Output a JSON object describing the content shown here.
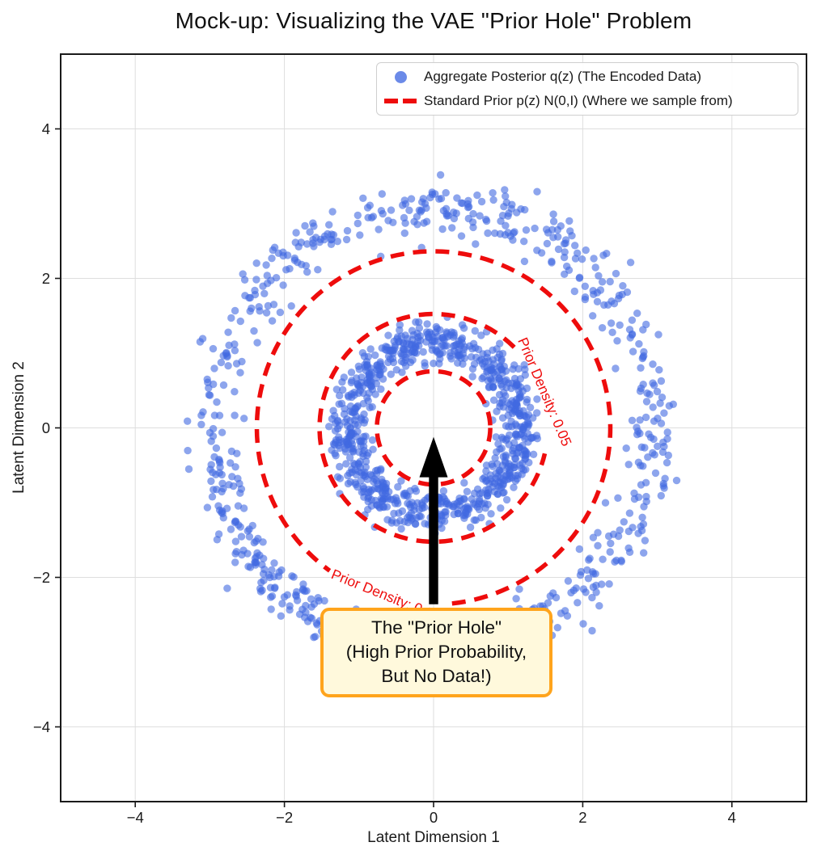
{
  "chart_data": {
    "type": "scatter",
    "title": "Mock-up: Visualizing the VAE \"Prior Hole\" Problem",
    "xlabel": "Latent Dimension 1",
    "ylabel": "Latent Dimension 2",
    "xlim": [
      -5,
      5
    ],
    "ylim": [
      -5,
      5
    ],
    "xticks": [
      -4,
      -2,
      0,
      2,
      4
    ],
    "yticks": [
      -4,
      -2,
      0,
      2,
      4
    ],
    "grid": true,
    "legend_position": "upper right",
    "series": [
      {
        "name": "Aggregate Posterior q(z) (The Encoded Data)",
        "type": "scatter",
        "marker": "circle",
        "color": "#4169E1",
        "alpha": 0.6,
        "seed": 20,
        "rings": [
          {
            "center": [
              0,
              0
            ],
            "mean_radius": 1.15,
            "radius_std": 0.13,
            "count": 850
          },
          {
            "center": [
              0,
              0
            ],
            "mean_radius": 2.95,
            "radius_std": 0.17,
            "count": 680
          }
        ]
      },
      {
        "name": "Standard Prior p(z) N(0,I) (Where we sample from)",
        "type": "dashed-contour-circles",
        "color": "#ee0c0c",
        "center": [
          0,
          0
        ],
        "circles": [
          {
            "radius": 0.76
          },
          {
            "radius": 1.53,
            "density": 0.05,
            "gap_start_deg": -13,
            "gap_end_deg": 45
          },
          {
            "radius": 2.37,
            "density": 0.01,
            "gap_start_deg": 234,
            "gap_end_deg": 276
          }
        ]
      }
    ],
    "contour_labels": [
      {
        "text": "Prior Density: 0.05",
        "x": 1.49,
        "y": 0.48,
        "rotation_deg": 67
      },
      {
        "text": "Prior Density: 0.01",
        "x": -0.64,
        "y": -2.24,
        "rotation_deg": 22
      }
    ],
    "annotation": {
      "lines": [
        "The \"Prior Hole\"",
        "(High Prior Probability,",
        "But No Data!)"
      ],
      "box_fill": "#fff9dc",
      "box_border": "#ffa41c",
      "arrow_color": "#000000",
      "arrow_from": [
        0,
        -2.36
      ],
      "arrow_to": [
        0,
        -0.12
      ]
    },
    "colors": {
      "scatter": "#4169E1",
      "prior_contour": "#ee0c0c",
      "grid": "#dedede",
      "spine": "#1a1a1a",
      "tick_label": "#1a1a1a"
    }
  }
}
